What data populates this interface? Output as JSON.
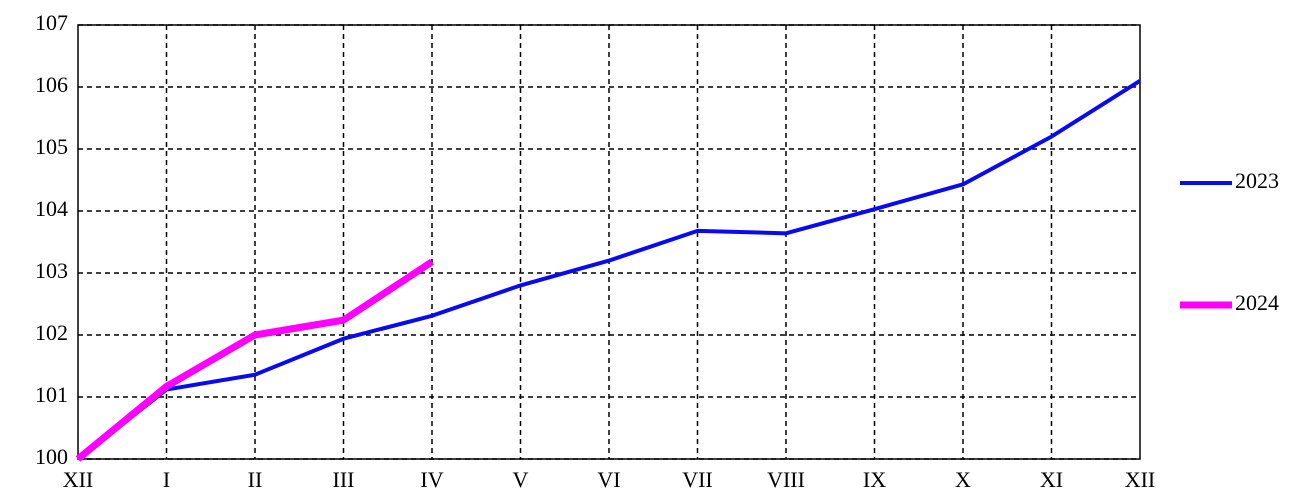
{
  "chart_data": {
    "type": "line",
    "categories": [
      "XII",
      "I",
      "II",
      "III",
      "IV",
      "V",
      "VI",
      "VII",
      "VIII",
      "IX",
      "X",
      "XI",
      "XII"
    ],
    "series": [
      {
        "name": "2023",
        "color": "#0a0aef",
        "values": [
          100,
          101.12,
          101.36,
          101.94,
          102.31,
          102.8,
          103.2,
          103.68,
          103.64,
          104.03,
          104.43,
          105.2,
          106.1
        ]
      },
      {
        "name": "2024",
        "color": "#ff00ff",
        "values": [
          100,
          101.17,
          102.0,
          102.24,
          103.18,
          null,
          null,
          null,
          null,
          null,
          null,
          null,
          null
        ]
      }
    ],
    "ylim": [
      100,
      107
    ],
    "yticks": [
      100,
      101,
      102,
      103,
      104,
      105,
      106,
      107
    ],
    "grid": true
  }
}
